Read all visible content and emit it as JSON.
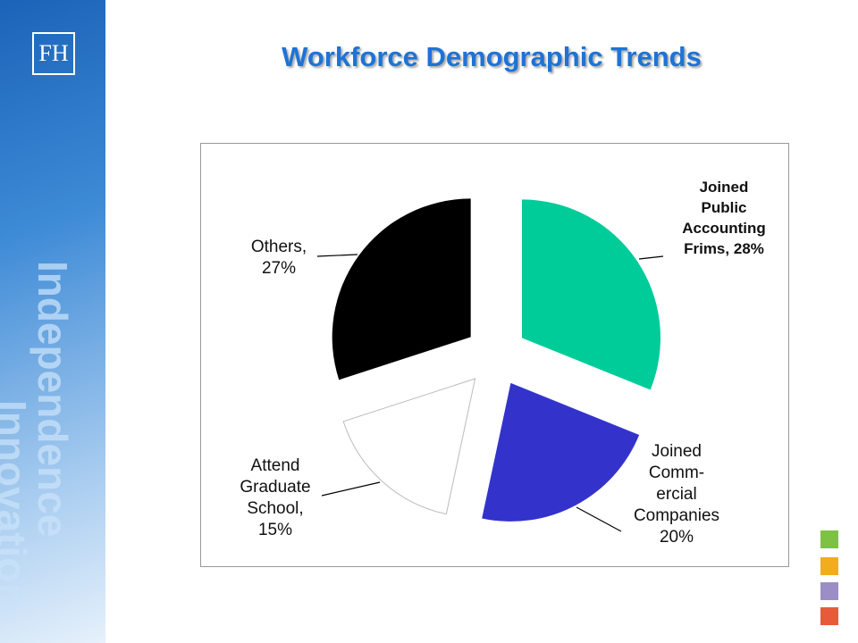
{
  "sidebar": {
    "logo": "FH",
    "words": [
      "Independence",
      "Innovation"
    ]
  },
  "chart_data": {
    "type": "pie",
    "title": "Workforce Demographic Trends",
    "categories": [
      "Joined\nPublic\nAccounting\nFrims,",
      "Joined\nComm-\nercial\nCompanies",
      "Attend\nGraduate\nSchool,",
      "Others,"
    ],
    "values": [
      28,
      20,
      15,
      27
    ],
    "value_labels": [
      "28%",
      "20%",
      "15%",
      "27%"
    ],
    "colors": [
      "#00cc99",
      "#3333cc",
      "#ffffff",
      "#000000"
    ]
  }
}
